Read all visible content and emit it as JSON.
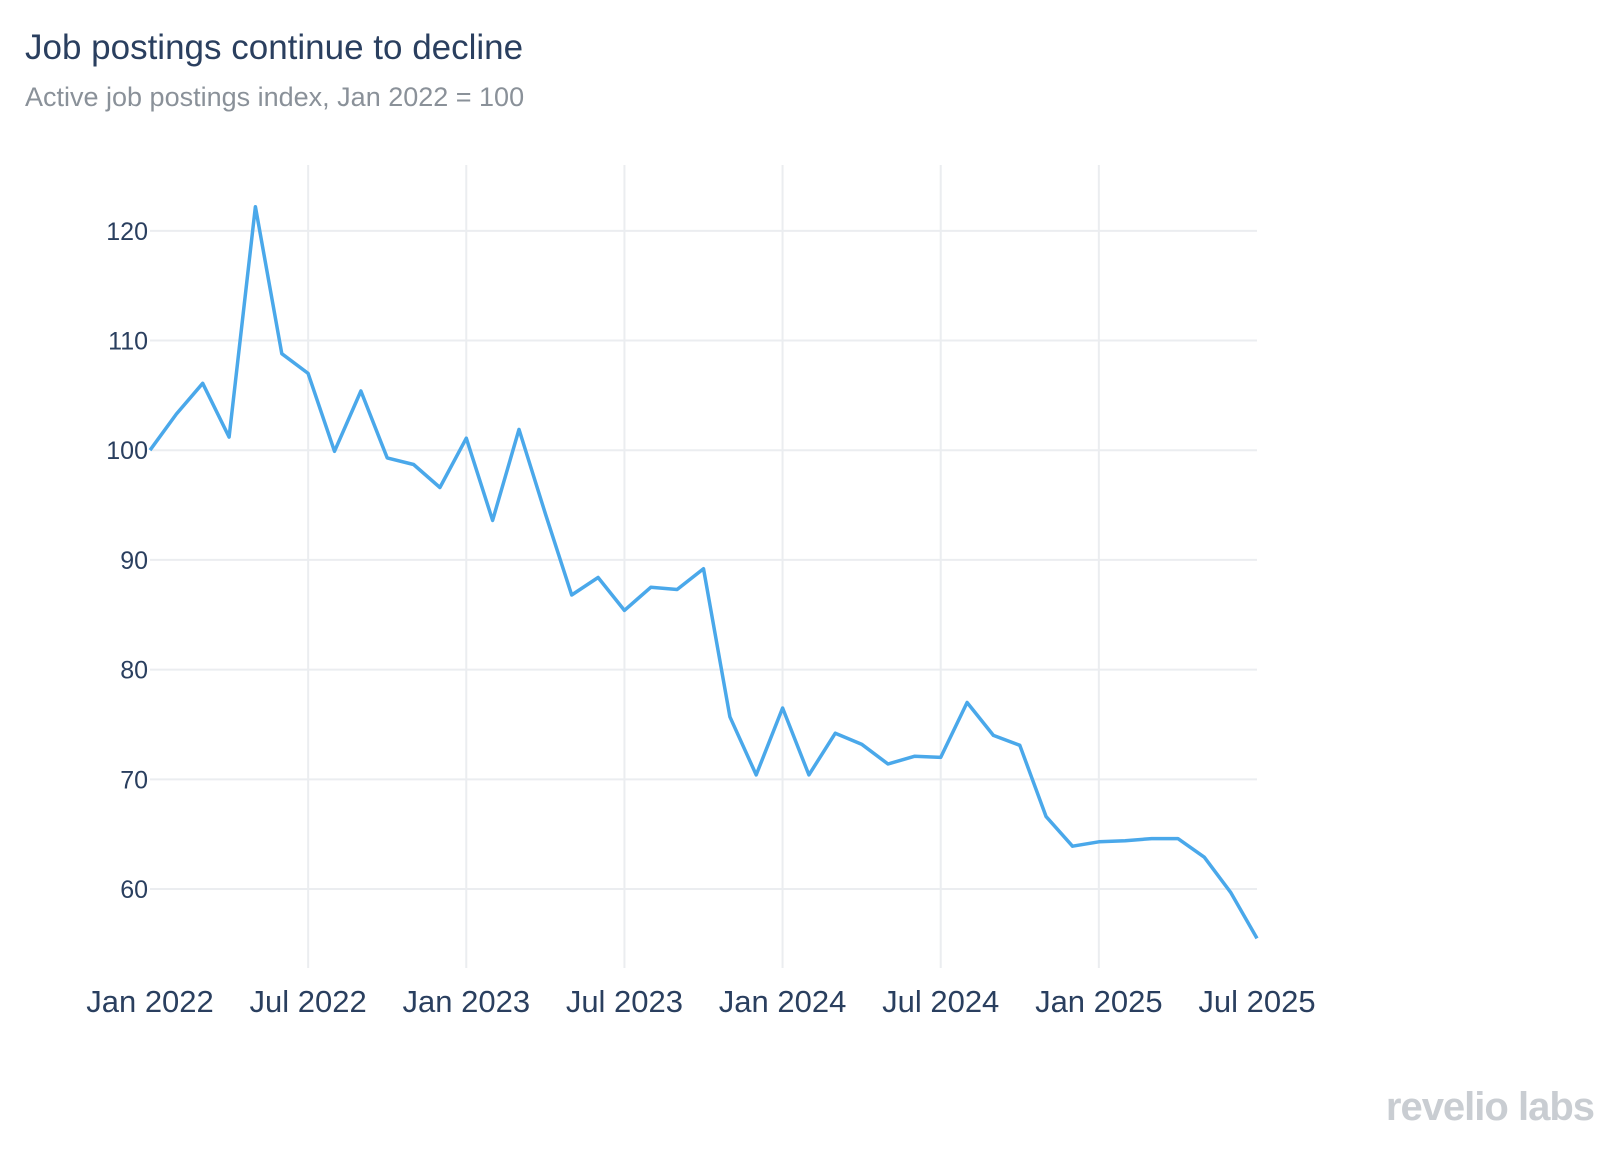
{
  "header": {
    "title": "Job postings continue to decline",
    "subtitle": "Active job postings index, Jan 2022 = 100"
  },
  "watermark": "revelio labs",
  "colors": {
    "line": "#4aa8ea",
    "grid": "#ebedf0",
    "text": "#2a3f5f"
  },
  "chart_data": {
    "type": "line",
    "title": "Job postings continue to decline",
    "subtitle": "Active job postings index, Jan 2022 = 100",
    "xlabel": "",
    "ylabel": "",
    "x_tick_labels": [
      "Jan 2022",
      "Jul 2022",
      "Jan 2023",
      "Jul 2023",
      "Jan 2024",
      "Jul 2024",
      "Jan 2025",
      "Jul 2025"
    ],
    "x_tick_dates": [
      "2022-01",
      "2022-07",
      "2023-01",
      "2023-07",
      "2024-01",
      "2024-07",
      "2025-01",
      "2025-07"
    ],
    "y_ticks": [
      60,
      70,
      80,
      90,
      100,
      110,
      120
    ],
    "ylim": [
      52.8,
      126
    ],
    "xlim": [
      "2022-01",
      "2025-07"
    ],
    "grid": true,
    "legend": "none",
    "series": [
      {
        "x": [
          "2022-01",
          "2022-02",
          "2022-03",
          "2022-04",
          "2022-05",
          "2022-06",
          "2022-07",
          "2022-08",
          "2022-09",
          "2022-10",
          "2022-11",
          "2022-12",
          "2023-01",
          "2023-02",
          "2023-03",
          "2023-04",
          "2023-05",
          "2023-06",
          "2023-07",
          "2023-08",
          "2023-09",
          "2023-10",
          "2023-11",
          "2023-12",
          "2024-01",
          "2024-02",
          "2024-03",
          "2024-04",
          "2024-05",
          "2024-06",
          "2024-07",
          "2024-08",
          "2024-09",
          "2024-10",
          "2024-11",
          "2024-12",
          "2025-01",
          "2025-02",
          "2025-03",
          "2025-04",
          "2025-05",
          "2025-06",
          "2025-07"
        ],
        "values": [
          100,
          103.3,
          106.1,
          101.2,
          122.2,
          108.8,
          107.0,
          99.9,
          105.4,
          99.3,
          98.7,
          96.6,
          101.1,
          93.6,
          101.9,
          94.2,
          86.8,
          88.4,
          85.4,
          87.5,
          87.3,
          89.2,
          75.7,
          70.4,
          76.5,
          70.4,
          74.2,
          73.2,
          71.4,
          72.1,
          72.0,
          77.0,
          74.0,
          73.1,
          66.6,
          63.9,
          64.3,
          64.4,
          64.6,
          64.6,
          62.9,
          59.7,
          55.5
        ]
      }
    ]
  }
}
